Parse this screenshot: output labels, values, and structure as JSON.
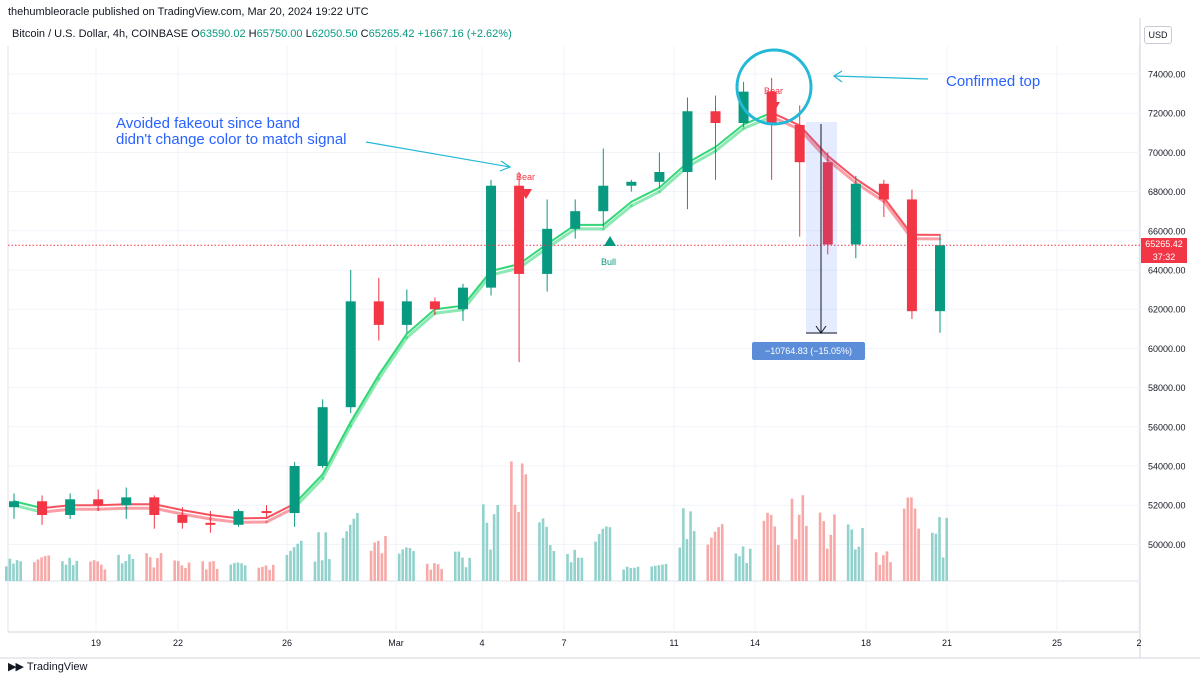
{
  "header": {
    "published": "thehumbleoracle published on TradingView.com, Mar 20, 2024 19:22 UTC",
    "symbol": "Bitcoin / U.S. Dollar, 4h, COINBASE",
    "o_label": "O",
    "o_value": "63590.02",
    "h_label": "H",
    "h_value": "65750.00",
    "l_label": "L",
    "l_value": "62050.50",
    "c_label": "C",
    "c_value": "65265.42",
    "change": "+1667.16 (+2.62%)",
    "currency": "USD"
  },
  "brand": {
    "logo_icon": "tradingview-logo-icon",
    "name": "TradingView"
  },
  "annotations": {
    "confirmed_top": "Confirmed top",
    "fakeout_line1": "Avoided fakeout since band",
    "fakeout_line2": "didn't change color to match signal",
    "measure": "−10764.83 (−15.05%) −1076483",
    "signal_bear": "Bear",
    "signal_bull": "Bull"
  },
  "last_price": {
    "value": "65265.42",
    "countdown": "37:32"
  },
  "colors": {
    "up": "#089981",
    "down": "#f23645",
    "band_up": "#33d778",
    "band_down": "#f7525f",
    "annotation": "#2962ff",
    "circle": "#22b8d6"
  },
  "chart_data": {
    "type": "candlestick",
    "ylim": [
      48000,
      75000
    ],
    "y_ticks": [
      "50000.00",
      "52000.00",
      "54000.00",
      "56000.00",
      "58000.00",
      "60000.00",
      "62000.00",
      "64000.00",
      "66000.00",
      "68000.00",
      "70000.00",
      "72000.00",
      "74000.00"
    ],
    "x_ticks": [
      "19",
      "22",
      "26",
      "Mar",
      "4",
      "7",
      "11",
      "14",
      "18",
      "21",
      "25",
      "2"
    ],
    "candles": [
      {
        "t": "Feb 16",
        "o": 51900,
        "h": 52600,
        "l": 51300,
        "c": 52200
      },
      {
        "t": "Feb 17",
        "o": 52200,
        "h": 52500,
        "l": 51000,
        "c": 51500
      },
      {
        "t": "Feb 18",
        "o": 51500,
        "h": 52600,
        "l": 51300,
        "c": 52300
      },
      {
        "t": "Feb 19",
        "o": 52300,
        "h": 52800,
        "l": 51700,
        "c": 52000
      },
      {
        "t": "Feb 20",
        "o": 52000,
        "h": 52900,
        "l": 51300,
        "c": 52400
      },
      {
        "t": "Feb 21",
        "o": 52400,
        "h": 52500,
        "l": 50800,
        "c": 51500
      },
      {
        "t": "Feb 22",
        "o": 51500,
        "h": 51900,
        "l": 50800,
        "c": 51100
      },
      {
        "t": "Feb 23",
        "o": 51100,
        "h": 51700,
        "l": 50600,
        "c": 51000
      },
      {
        "t": "Feb 24",
        "o": 51000,
        "h": 51800,
        "l": 50900,
        "c": 51700
      },
      {
        "t": "Feb 25",
        "o": 51700,
        "h": 52000,
        "l": 51300,
        "c": 51600
      },
      {
        "t": "Feb 26",
        "o": 51600,
        "h": 54200,
        "l": 50900,
        "c": 54000
      },
      {
        "t": "Feb 27",
        "o": 54000,
        "h": 57400,
        "l": 53900,
        "c": 57000
      },
      {
        "t": "Feb 28",
        "o": 57000,
        "h": 64000,
        "l": 56700,
        "c": 62400
      },
      {
        "t": "Feb 29",
        "o": 62400,
        "h": 63600,
        "l": 60400,
        "c": 61200
      },
      {
        "t": "Mar 1",
        "o": 61200,
        "h": 63000,
        "l": 60800,
        "c": 62400
      },
      {
        "t": "Mar 2",
        "o": 62400,
        "h": 62600,
        "l": 61700,
        "c": 62000
      },
      {
        "t": "Mar 3",
        "o": 62000,
        "h": 63300,
        "l": 61400,
        "c": 63100
      },
      {
        "t": "Mar 4",
        "o": 63100,
        "h": 68600,
        "l": 62700,
        "c": 68300
      },
      {
        "t": "Mar 5",
        "o": 68300,
        "h": 69000,
        "l": 59300,
        "c": 63800
      },
      {
        "t": "Mar 6",
        "o": 63800,
        "h": 67600,
        "l": 62900,
        "c": 66100
      },
      {
        "t": "Mar 7",
        "o": 66100,
        "h": 67600,
        "l": 65600,
        "c": 67000
      },
      {
        "t": "Mar 8",
        "o": 67000,
        "h": 70200,
        "l": 66200,
        "c": 68300
      },
      {
        "t": "Mar 9",
        "o": 68300,
        "h": 68600,
        "l": 68000,
        "c": 68500
      },
      {
        "t": "Mar 10",
        "o": 68500,
        "h": 70000,
        "l": 68200,
        "c": 69000
      },
      {
        "t": "Mar 11",
        "o": 69000,
        "h": 72800,
        "l": 67100,
        "c": 72100
      },
      {
        "t": "Mar 12",
        "o": 72100,
        "h": 72900,
        "l": 68600,
        "c": 71500
      },
      {
        "t": "Mar 13",
        "o": 71500,
        "h": 73600,
        "l": 71300,
        "c": 73100
      },
      {
        "t": "Mar 14",
        "o": 73100,
        "h": 73800,
        "l": 68600,
        "c": 71400
      },
      {
        "t": "Mar 15",
        "o": 71400,
        "h": 72400,
        "l": 65700,
        "c": 69500
      },
      {
        "t": "Mar 16",
        "o": 69500,
        "h": 70000,
        "l": 64800,
        "c": 65300
      },
      {
        "t": "Mar 17",
        "o": 65300,
        "h": 68800,
        "l": 64600,
        "c": 68400
      },
      {
        "t": "Mar 18",
        "o": 68400,
        "h": 68600,
        "l": 66700,
        "c": 67600
      },
      {
        "t": "Mar 19",
        "o": 67600,
        "h": 68100,
        "l": 61500,
        "c": 61900
      },
      {
        "t": "Mar 20",
        "o": 61900,
        "h": 65750,
        "l": 60800,
        "c": 65265
      }
    ]
  }
}
